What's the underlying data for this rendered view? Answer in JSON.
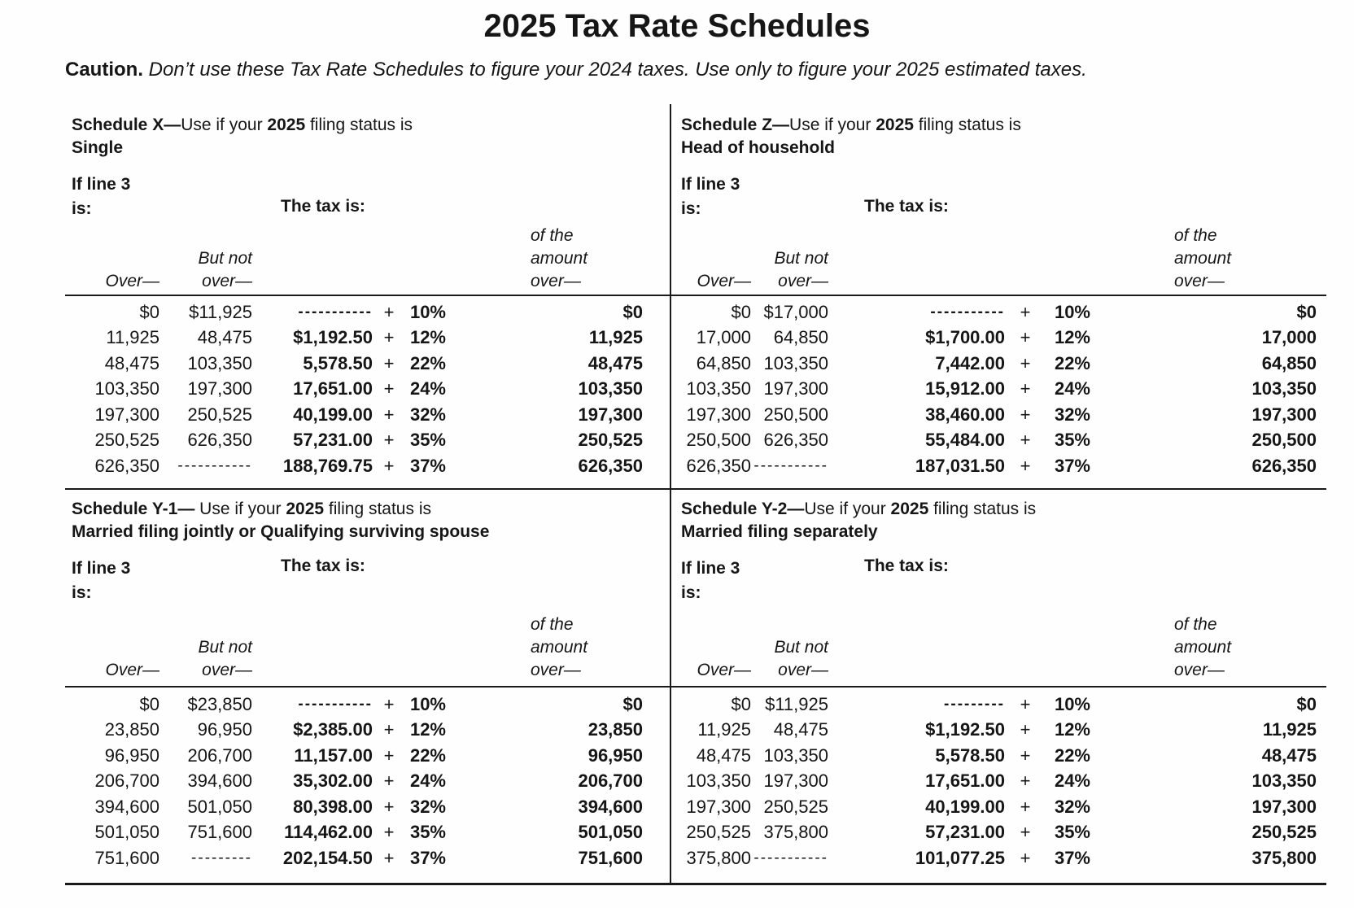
{
  "title": "2025 Tax Rate Schedules",
  "caution": {
    "label": "Caution.",
    "text": " Don’t use these Tax Rate Schedules to figure your 2024 taxes. Use only to figure your 2025 estimated taxes."
  },
  "labels": {
    "if_line_1": "If line 3",
    "if_line_2": "is:",
    "tax_is": "The tax is:",
    "over": "Over—",
    "but_not": "But not",
    "over_sm": "over—",
    "of_the": "of the",
    "amount": "amount",
    "plus": "+"
  },
  "schedules": [
    {
      "id": "x",
      "title_bold": "Schedule X—",
      "title_mid": "Use if your ",
      "title_year": "2025",
      "title_rest": " filing status is",
      "subtitle": "Single",
      "rows": [
        {
          "over": "$0",
          "but_not": "$11,925",
          "tax": "-----------",
          "rate": "10%",
          "of_amount": "$0"
        },
        {
          "over": "11,925",
          "but_not": "48,475",
          "tax": "$1,192.50",
          "rate": "12%",
          "of_amount": "11,925"
        },
        {
          "over": "48,475",
          "but_not": "103,350",
          "tax": "5,578.50",
          "rate": "22%",
          "of_amount": "48,475"
        },
        {
          "over": "103,350",
          "but_not": "197,300",
          "tax": "17,651.00",
          "rate": "24%",
          "of_amount": "103,350"
        },
        {
          "over": "197,300",
          "but_not": "250,525",
          "tax": "40,199.00",
          "rate": "32%",
          "of_amount": "197,300"
        },
        {
          "over": "250,525",
          "but_not": "626,350",
          "tax": "57,231.00",
          "rate": "35%",
          "of_amount": "250,525"
        },
        {
          "over": "626,350",
          "but_not": "-----------",
          "tax": "188,769.75",
          "rate": "37%",
          "of_amount": "626,350"
        }
      ]
    },
    {
      "id": "z",
      "title_bold": "Schedule Z—",
      "title_mid": "Use if your ",
      "title_year": "2025",
      "title_rest": " filing status is",
      "subtitle": "Head of household",
      "rows": [
        {
          "over": "$0",
          "but_not": "$17,000",
          "tax": "-----------",
          "rate": "10%",
          "of_amount": "$0"
        },
        {
          "over": "17,000",
          "but_not": "64,850",
          "tax": "$1,700.00",
          "rate": "12%",
          "of_amount": "17,000"
        },
        {
          "over": "64,850",
          "but_not": "103,350",
          "tax": "7,442.00",
          "rate": "22%",
          "of_amount": "64,850"
        },
        {
          "over": "103,350",
          "but_not": "197,300",
          "tax": "15,912.00",
          "rate": "24%",
          "of_amount": "103,350"
        },
        {
          "over": "197,300",
          "but_not": "250,500",
          "tax": "38,460.00",
          "rate": "32%",
          "of_amount": "197,300"
        },
        {
          "over": "250,500",
          "but_not": "626,350",
          "tax": "55,484.00",
          "rate": "35%",
          "of_amount": "250,500"
        },
        {
          "over": "626,350",
          "but_not": "-----------",
          "tax": "187,031.50",
          "rate": "37%",
          "of_amount": "626,350"
        }
      ]
    },
    {
      "id": "y1",
      "title_bold": "Schedule Y-1— ",
      "title_mid": "Use if your ",
      "title_year": "2025",
      "title_rest": " filing status is",
      "subtitle": "Married filing jointly or Qualifying surviving spouse",
      "rows": [
        {
          "over": "$0",
          "but_not": "$23,850",
          "tax": "-----------",
          "rate": "10%",
          "of_amount": "$0"
        },
        {
          "over": "23,850",
          "but_not": "96,950",
          "tax": "$2,385.00",
          "rate": "12%",
          "of_amount": "23,850"
        },
        {
          "over": "96,950",
          "but_not": "206,700",
          "tax": "11,157.00",
          "rate": "22%",
          "of_amount": "96,950"
        },
        {
          "over": "206,700",
          "but_not": "394,600",
          "tax": "35,302.00",
          "rate": "24%",
          "of_amount": "206,700"
        },
        {
          "over": "394,600",
          "but_not": "501,050",
          "tax": "80,398.00",
          "rate": "32%",
          "of_amount": "394,600"
        },
        {
          "over": "501,050",
          "but_not": "751,600",
          "tax": "114,462.00",
          "rate": "35%",
          "of_amount": "501,050"
        },
        {
          "over": "751,600",
          "but_not": "---------",
          "tax": "202,154.50",
          "rate": "37%",
          "of_amount": "751,600"
        }
      ]
    },
    {
      "id": "y2",
      "title_bold": "Schedule Y-2—",
      "title_mid": "Use if your ",
      "title_year": "2025",
      "title_rest": " filing status is",
      "subtitle": "Married filing separately",
      "rows": [
        {
          "over": "$0",
          "but_not": "$11,925",
          "tax": "---------",
          "rate": "10%",
          "of_amount": "$0"
        },
        {
          "over": "11,925",
          "but_not": "48,475",
          "tax": "$1,192.50",
          "rate": "12%",
          "of_amount": "11,925"
        },
        {
          "over": "48,475",
          "but_not": "103,350",
          "tax": "5,578.50",
          "rate": "22%",
          "of_amount": "48,475"
        },
        {
          "over": "103,350",
          "but_not": "197,300",
          "tax": "17,651.00",
          "rate": "24%",
          "of_amount": "103,350"
        },
        {
          "over": "197,300",
          "but_not": "250,525",
          "tax": "40,199.00",
          "rate": "32%",
          "of_amount": "197,300"
        },
        {
          "over": "250,525",
          "but_not": "375,800",
          "tax": "57,231.00",
          "rate": "35%",
          "of_amount": "250,525"
        },
        {
          "over": "375,800",
          "but_not": "-----------",
          "tax": "101,077.25",
          "rate": "37%",
          "of_amount": "375,800"
        }
      ]
    }
  ]
}
